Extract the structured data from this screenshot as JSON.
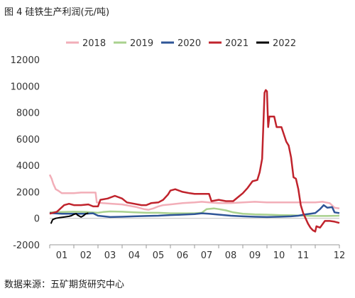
{
  "figure": {
    "title": "图 4 硅铁生产利润(元/吨)",
    "source": "数据来源：五矿期货研究中心"
  },
  "chart_data": {
    "type": "line",
    "x_domain": [
      0,
      12
    ],
    "ylim": [
      -2000,
      12000
    ],
    "yticks": [
      -2000,
      0,
      2000,
      4000,
      6000,
      8000,
      10000,
      12000
    ],
    "xtick_labels": [
      {
        "pos": 1,
        "label": "01"
      },
      {
        "pos": 2,
        "label": "02"
      },
      {
        "pos": 3,
        "label": "03"
      },
      {
        "pos": 4,
        "label": "04"
      },
      {
        "pos": 5,
        "label": "05"
      },
      {
        "pos": 6,
        "label": "06"
      },
      {
        "pos": 7,
        "label": "07"
      },
      {
        "pos": 8,
        "label": "08"
      },
      {
        "pos": 9,
        "label": "09"
      },
      {
        "pos": 10,
        "label": "10"
      },
      {
        "pos": 11,
        "label": "11"
      },
      {
        "pos": 12,
        "label": "12"
      }
    ],
    "legend_position": "top",
    "grid": false,
    "series": [
      {
        "name": "2018",
        "color": "#f2aeb8",
        "points": [
          [
            0,
            3300
          ],
          [
            0.08,
            3000
          ],
          [
            0.15,
            2600
          ],
          [
            0.25,
            2200
          ],
          [
            0.35,
            2100
          ],
          [
            0.5,
            1900
          ],
          [
            0.8,
            1900
          ],
          [
            1.0,
            1900
          ],
          [
            1.3,
            1950
          ],
          [
            1.6,
            1950
          ],
          [
            1.9,
            1950
          ],
          [
            1.95,
            1200
          ],
          [
            2.2,
            1150
          ],
          [
            2.6,
            1100
          ],
          [
            3.0,
            1050
          ],
          [
            3.3,
            950
          ],
          [
            3.6,
            850
          ],
          [
            3.9,
            700
          ],
          [
            4.1,
            650
          ],
          [
            4.3,
            750
          ],
          [
            4.5,
            900
          ],
          [
            4.7,
            1000
          ],
          [
            5.0,
            1050
          ],
          [
            5.5,
            1150
          ],
          [
            6.0,
            1200
          ],
          [
            6.3,
            1250
          ],
          [
            6.6,
            1200
          ],
          [
            7.0,
            1150
          ],
          [
            7.5,
            1150
          ],
          [
            8.0,
            1200
          ],
          [
            8.5,
            1250
          ],
          [
            9.0,
            1200
          ],
          [
            9.5,
            1200
          ],
          [
            10.0,
            1200
          ],
          [
            10.5,
            1200
          ],
          [
            11.0,
            1200
          ],
          [
            11.3,
            1250
          ],
          [
            11.6,
            1150
          ],
          [
            11.8,
            800
          ],
          [
            12.0,
            750
          ]
        ]
      },
      {
        "name": "2019",
        "color": "#a9d18e",
        "points": [
          [
            0,
            450
          ],
          [
            0.5,
            480
          ],
          [
            1.0,
            500
          ],
          [
            1.5,
            480
          ],
          [
            2.0,
            420
          ],
          [
            2.2,
            480
          ],
          [
            2.5,
            520
          ],
          [
            3.0,
            500
          ],
          [
            3.5,
            450
          ],
          [
            4.0,
            420
          ],
          [
            4.5,
            420
          ],
          [
            5.0,
            380
          ],
          [
            5.5,
            380
          ],
          [
            6.0,
            380
          ],
          [
            6.3,
            420
          ],
          [
            6.5,
            700
          ],
          [
            6.8,
            750
          ],
          [
            7.0,
            700
          ],
          [
            7.3,
            600
          ],
          [
            7.6,
            450
          ],
          [
            8.0,
            350
          ],
          [
            8.5,
            300
          ],
          [
            9.0,
            280
          ],
          [
            9.5,
            250
          ],
          [
            10.0,
            230
          ],
          [
            10.5,
            200
          ],
          [
            11.0,
            180
          ],
          [
            11.5,
            180
          ],
          [
            12.0,
            200
          ]
        ]
      },
      {
        "name": "2020",
        "color": "#2f5597",
        "points": [
          [
            0,
            400
          ],
          [
            0.5,
            350
          ],
          [
            1.0,
            350
          ],
          [
            1.5,
            350
          ],
          [
            1.8,
            380
          ],
          [
            2.0,
            200
          ],
          [
            2.5,
            100
          ],
          [
            3.0,
            120
          ],
          [
            3.5,
            150
          ],
          [
            4.0,
            180
          ],
          [
            4.5,
            200
          ],
          [
            5.0,
            250
          ],
          [
            5.5,
            280
          ],
          [
            6.0,
            320
          ],
          [
            6.3,
            380
          ],
          [
            6.6,
            350
          ],
          [
            7.0,
            280
          ],
          [
            7.5,
            200
          ],
          [
            8.0,
            150
          ],
          [
            8.5,
            120
          ],
          [
            9.0,
            100
          ],
          [
            9.5,
            120
          ],
          [
            10.0,
            150
          ],
          [
            10.3,
            200
          ],
          [
            10.6,
            300
          ],
          [
            10.8,
            350
          ],
          [
            11.0,
            400
          ],
          [
            11.2,
            700
          ],
          [
            11.35,
            1000
          ],
          [
            11.5,
            800
          ],
          [
            11.7,
            850
          ],
          [
            11.8,
            450
          ],
          [
            12.0,
            400
          ]
        ]
      },
      {
        "name": "2021",
        "color": "#c0232c",
        "points": [
          [
            0,
            350
          ],
          [
            0.3,
            500
          ],
          [
            0.6,
            1000
          ],
          [
            0.8,
            1100
          ],
          [
            1.0,
            1000
          ],
          [
            1.3,
            1000
          ],
          [
            1.6,
            1050
          ],
          [
            1.8,
            900
          ],
          [
            2.0,
            900
          ],
          [
            2.1,
            1400
          ],
          [
            2.4,
            1500
          ],
          [
            2.7,
            1700
          ],
          [
            3.0,
            1500
          ],
          [
            3.2,
            1200
          ],
          [
            3.5,
            1100
          ],
          [
            3.8,
            1000
          ],
          [
            4.0,
            1000
          ],
          [
            4.2,
            1150
          ],
          [
            4.5,
            1200
          ],
          [
            4.7,
            1400
          ],
          [
            4.9,
            1800
          ],
          [
            5.0,
            2100
          ],
          [
            5.2,
            2200
          ],
          [
            5.5,
            2000
          ],
          [
            5.8,
            1900
          ],
          [
            6.0,
            1850
          ],
          [
            6.3,
            1850
          ],
          [
            6.6,
            1850
          ],
          [
            6.7,
            1300
          ],
          [
            7.0,
            1400
          ],
          [
            7.3,
            1300
          ],
          [
            7.6,
            1300
          ],
          [
            7.8,
            1600
          ],
          [
            8.0,
            1900
          ],
          [
            8.2,
            2300
          ],
          [
            8.4,
            2800
          ],
          [
            8.6,
            2900
          ],
          [
            8.7,
            3500
          ],
          [
            8.8,
            4500
          ],
          [
            8.9,
            9500
          ],
          [
            8.95,
            9700
          ],
          [
            9.0,
            9600
          ],
          [
            9.05,
            6900
          ],
          [
            9.1,
            7700
          ],
          [
            9.3,
            7700
          ],
          [
            9.4,
            6900
          ],
          [
            9.6,
            6900
          ],
          [
            9.8,
            5800
          ],
          [
            9.9,
            5500
          ],
          [
            10.0,
            4600
          ],
          [
            10.1,
            3100
          ],
          [
            10.2,
            3000
          ],
          [
            10.3,
            2200
          ],
          [
            10.4,
            1000
          ],
          [
            10.5,
            400
          ],
          [
            10.6,
            0
          ],
          [
            10.7,
            -400
          ],
          [
            10.8,
            -700
          ],
          [
            10.9,
            -900
          ],
          [
            11.0,
            -1000
          ],
          [
            11.05,
            -600
          ],
          [
            11.2,
            -700
          ],
          [
            11.4,
            -200
          ],
          [
            11.6,
            -200
          ],
          [
            11.8,
            -250
          ],
          [
            12.0,
            -350
          ]
        ]
      },
      {
        "name": "2022",
        "color": "#000000",
        "points": [
          [
            0.05,
            -400
          ],
          [
            0.12,
            -100
          ],
          [
            0.25,
            0
          ],
          [
            0.4,
            50
          ],
          [
            0.6,
            100
          ],
          [
            0.8,
            150
          ],
          [
            0.9,
            200
          ],
          [
            1.0,
            300
          ],
          [
            1.1,
            350
          ],
          [
            1.15,
            250
          ],
          [
            1.3,
            100
          ],
          [
            1.4,
            200
          ],
          [
            1.5,
            350
          ],
          [
            1.6,
            400
          ]
        ]
      }
    ]
  }
}
